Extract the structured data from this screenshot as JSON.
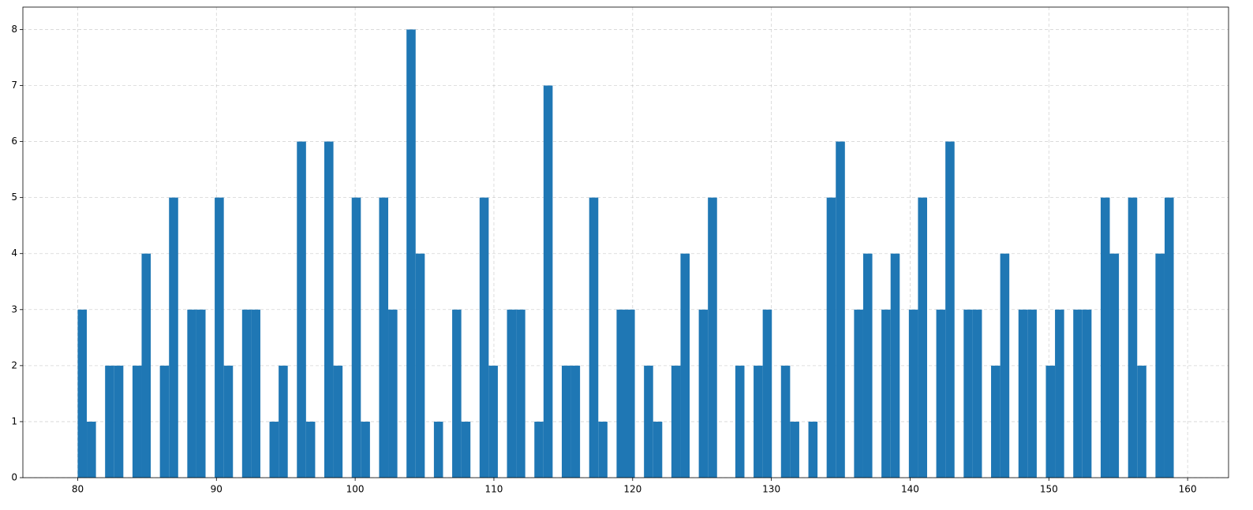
{
  "chart_data": {
    "type": "histogram",
    "bins": [
      80,
      80.6583,
      81.3167,
      81.975,
      82.6333,
      83.2917,
      83.95,
      84.6083,
      85.2667,
      85.925,
      86.5833,
      87.2417,
      87.9,
      88.5583,
      89.2167,
      89.875,
      90.5333,
      91.1917,
      91.85,
      92.5083,
      93.1667,
      93.825,
      94.4833,
      95.1417,
      95.8,
      96.4583,
      97.1167,
      97.775,
      98.4333,
      99.0917,
      99.75,
      100.4083,
      101.0667,
      101.725,
      102.3833,
      103.0417,
      103.7,
      104.3583,
      105.0167,
      105.675,
      106.3333,
      106.9917,
      107.65,
      108.3083,
      108.9667,
      109.625,
      110.2833,
      110.9417,
      111.6,
      112.2583,
      112.9167,
      113.575,
      114.2333,
      114.8917,
      115.55,
      116.2083,
      116.8667,
      117.525,
      118.1833,
      118.8417,
      119.5,
      120.1583,
      120.8167,
      121.475,
      122.1333,
      122.7917,
      123.45,
      124.1083,
      124.7667,
      125.425,
      126.0833,
      126.7417,
      127.4,
      128.0583,
      128.7167,
      129.375,
      130.0333,
      130.6917,
      131.35,
      132.0083,
      132.6667,
      133.325,
      133.9833,
      134.6417,
      135.3,
      135.9583,
      136.6167,
      137.275,
      137.9333,
      138.5917,
      139.25,
      139.9083,
      140.5667,
      141.225,
      141.8833,
      142.5417,
      143.2,
      143.8583,
      144.5167,
      145.175,
      145.8333,
      146.4917,
      147.15,
      147.8083,
      148.4667,
      149.125,
      149.7833,
      150.4417,
      151.1,
      151.7583,
      152.4167,
      153.075,
      153.7333,
      154.3917,
      155.05,
      155.7083,
      156.3667,
      157.025,
      157.6833,
      158.3417,
      159
    ],
    "values": [
      3,
      1,
      0,
      2,
      2,
      0,
      2,
      4,
      0,
      2,
      5,
      0,
      3,
      3,
      0,
      5,
      2,
      0,
      3,
      3,
      0,
      1,
      2,
      0,
      6,
      1,
      0,
      6,
      2,
      0,
      5,
      1,
      0,
      5,
      3,
      0,
      8,
      4,
      0,
      1,
      0,
      3,
      1,
      0,
      5,
      2,
      0,
      3,
      3,
      0,
      1,
      7,
      0,
      2,
      2,
      0,
      5,
      1,
      0,
      3,
      3,
      0,
      2,
      1,
      0,
      2,
      4,
      0,
      3,
      5,
      0,
      0,
      2,
      0,
      2,
      3,
      0,
      2,
      1,
      0,
      1,
      0,
      5,
      6,
      0,
      3,
      4,
      0,
      3,
      4,
      0,
      3,
      5,
      0,
      3,
      6,
      0,
      3,
      3,
      0,
      2,
      4,
      0,
      3,
      3,
      0,
      2,
      3,
      0,
      3,
      3,
      0,
      5,
      4,
      0,
      5,
      2,
      0,
      4,
      5
    ],
    "color": "#1f77b4",
    "xlim": [
      76.05,
      162.95
    ],
    "xticks": [
      80,
      90,
      100,
      110,
      120,
      130,
      140,
      150,
      160
    ],
    "ylim": [
      0,
      8.4
    ],
    "yticks": [
      0,
      1,
      2,
      3,
      4,
      5,
      6,
      7,
      8
    ],
    "grid": true
  }
}
